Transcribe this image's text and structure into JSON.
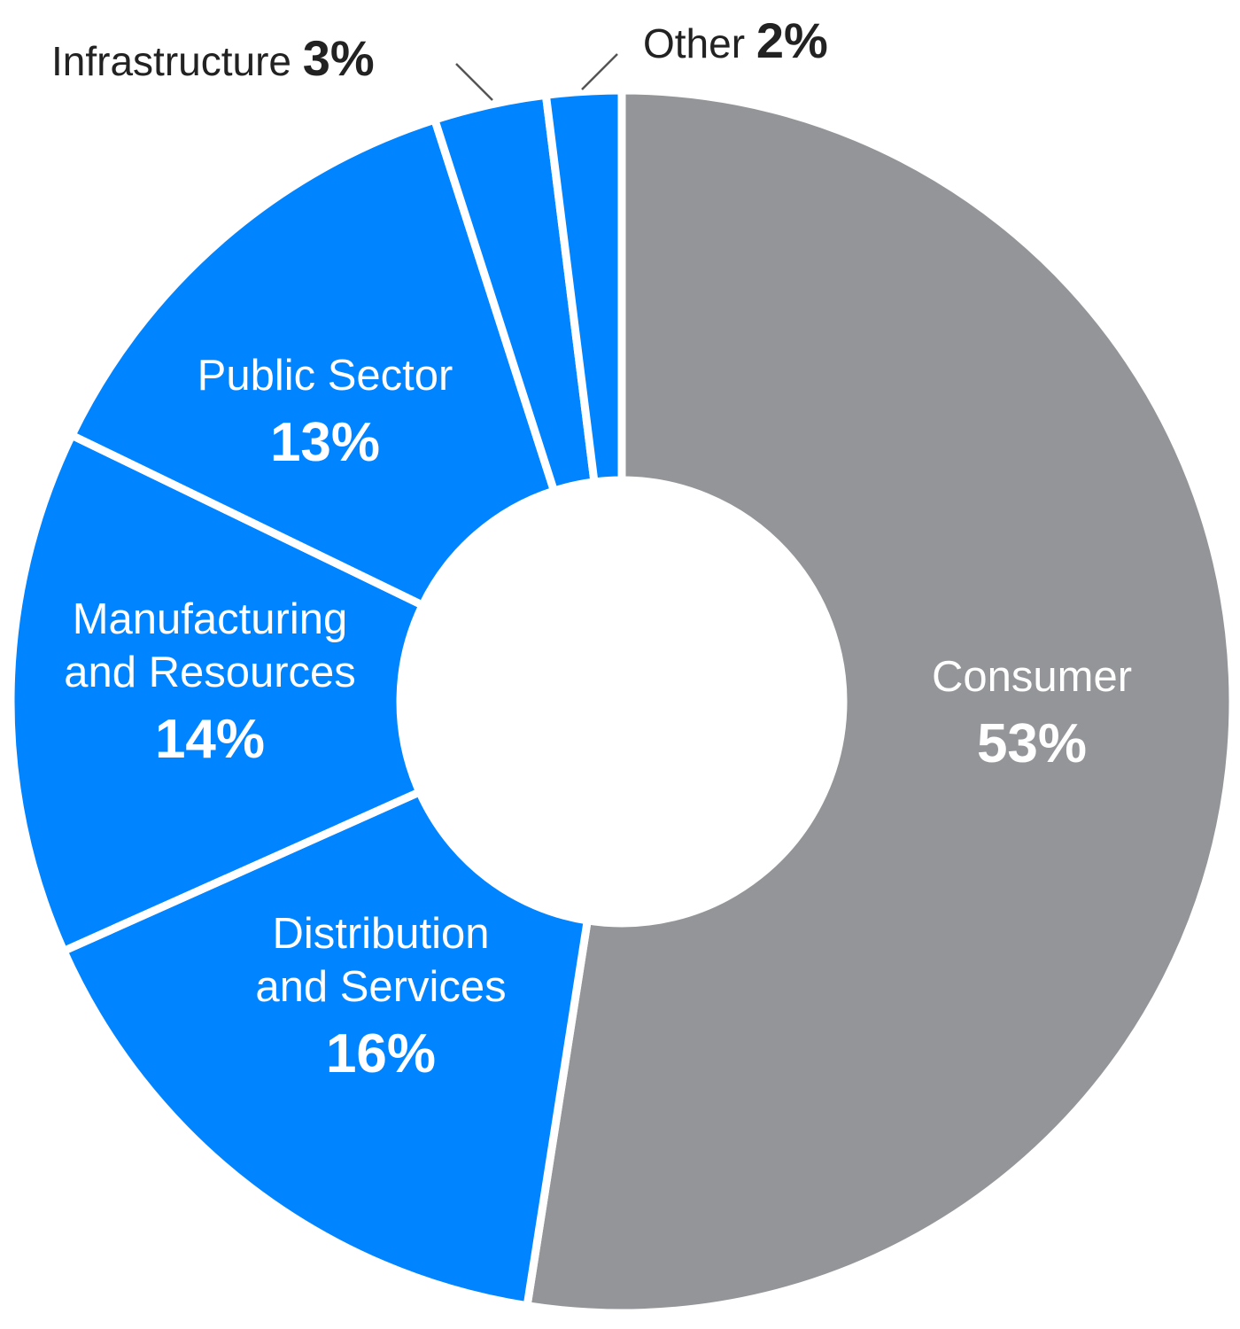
{
  "chart_data": {
    "type": "pie",
    "donut": true,
    "slices": [
      {
        "name_lines": [
          "Consumer"
        ],
        "pct_label": "53%",
        "value": 53,
        "color": "#939598",
        "label_position": "inside"
      },
      {
        "name_lines": [
          "Distribution",
          "and Services"
        ],
        "pct_label": "16%",
        "value": 16,
        "color": "#0084FF",
        "label_position": "inside"
      },
      {
        "name_lines": [
          "Manufacturing",
          "and Resources"
        ],
        "pct_label": "14%",
        "value": 14,
        "color": "#0084FF",
        "label_position": "inside"
      },
      {
        "name_lines": [
          "Public Sector"
        ],
        "pct_label": "13%",
        "value": 13,
        "color": "#0084FF",
        "label_position": "inside"
      },
      {
        "name_lines": [
          "Infrastructure"
        ],
        "pct_label": "3%",
        "value": 3,
        "color": "#0084FF",
        "label_position": "outside"
      },
      {
        "name_lines": [
          "Other"
        ],
        "pct_label": "2%",
        "value": 2,
        "color": "#0084FF",
        "label_position": "outside"
      }
    ]
  }
}
